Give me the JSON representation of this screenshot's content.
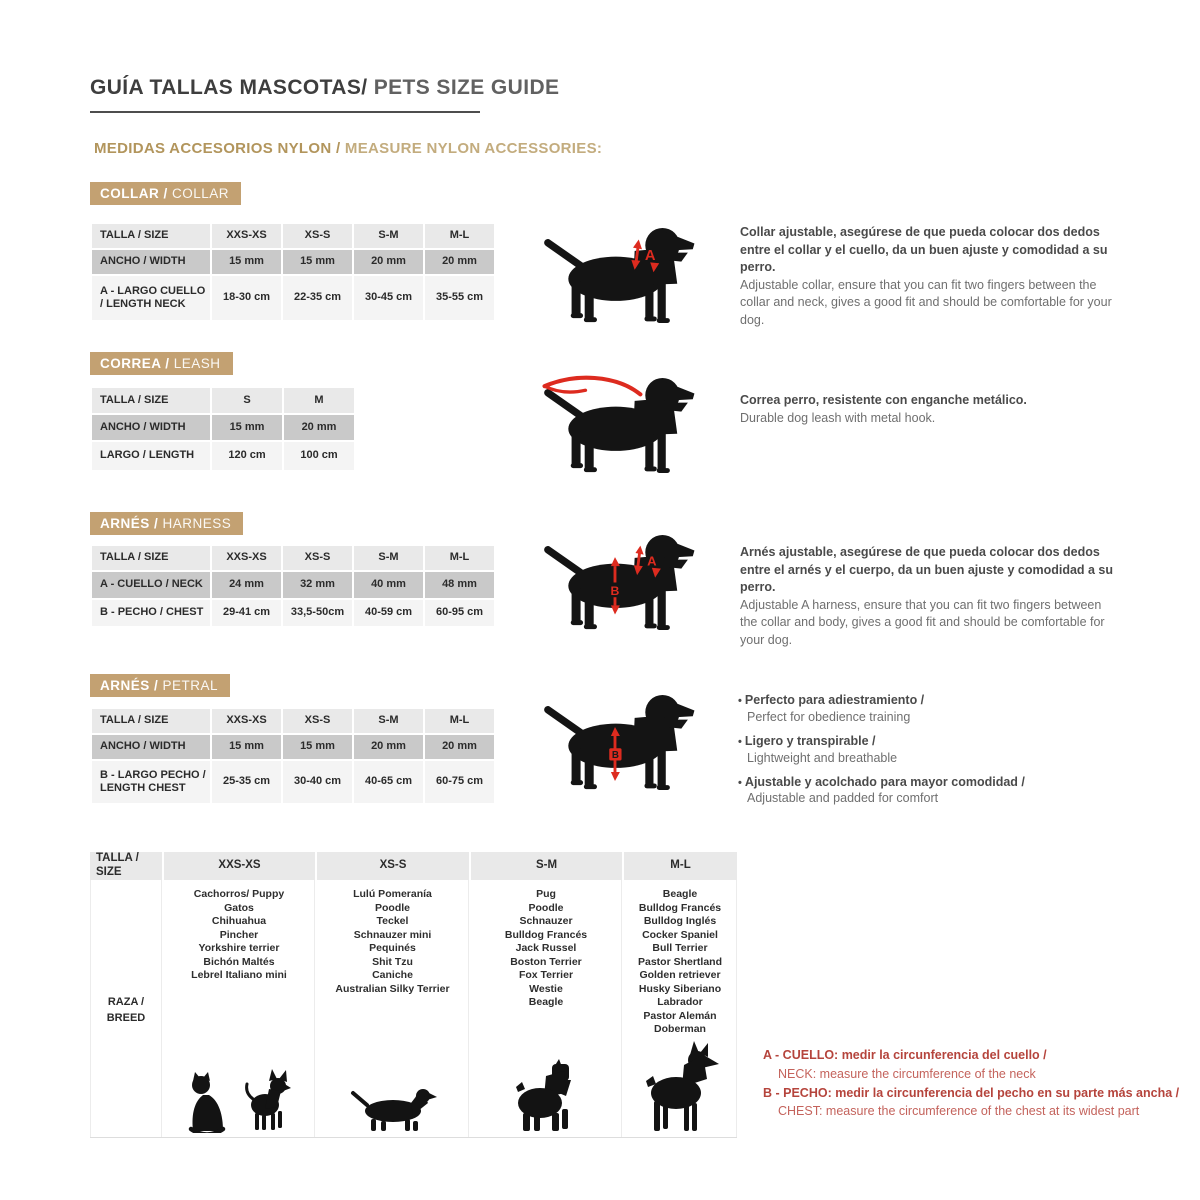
{
  "header": {
    "title_es": "GUÍA TALLAS MASCOTAS/",
    "title_en": " PETS SIZE GUIDE",
    "subtitle_es": "MEDIDAS ACCESORIOS NYLON / ",
    "subtitle_en": "MEASURE NYLON ACCESSORIES:"
  },
  "collar": {
    "badge_es": "COLLAR / ",
    "badge_en": "COLLAR",
    "table": [
      [
        "TALLA / SIZE",
        "XXS-XS",
        "XS-S",
        "S-M",
        "M-L"
      ],
      [
        "ANCHO / WIDTH",
        "15 mm",
        "15 mm",
        "20 mm",
        "20 mm"
      ],
      [
        "A - LARGO CUELLO / LENGTH NECK",
        "18-30 cm",
        "22-35 cm",
        "30-45 cm",
        "35-55 cm"
      ]
    ],
    "desc_es": "Collar ajustable, asegúrese de que pueda colocar dos dedos entre el collar y el cuello, da un buen ajuste y comodidad a su perro.",
    "desc_en": "Adjustable collar, ensure that you can fit two fingers between the collar and neck, gives a good fit and should be comfortable for your dog."
  },
  "leash": {
    "badge_es": "CORREA / ",
    "badge_en": "LEASH",
    "table": [
      [
        "TALLA / SIZE",
        "S",
        "M"
      ],
      [
        "ANCHO / WIDTH",
        "15 mm",
        "20 mm"
      ],
      [
        "LARGO / LENGTH",
        "120 cm",
        "100 cm"
      ]
    ],
    "desc_es": "Correa perro, resistente con enganche metálico.",
    "desc_en": "Durable dog leash with metal hook."
  },
  "harness": {
    "badge_es": "ARNÉS / ",
    "badge_en": "HARNESS",
    "table": [
      [
        "TALLA / SIZE",
        "XXS-XS",
        "XS-S",
        "S-M",
        "M-L"
      ],
      [
        "A - CUELLO / NECK",
        "24 mm",
        "32 mm",
        "40 mm",
        "48 mm"
      ],
      [
        "B - PECHO / CHEST",
        "29-41 cm",
        "33,5-50cm",
        "40-59 cm",
        "60-95 cm"
      ]
    ],
    "desc_es": "Arnés ajustable, asegúrese de que pueda colocar dos dedos entre el arnés y el cuerpo, da un buen ajuste y comodidad a su perro.",
    "desc_en": "Adjustable A harness, ensure that you can fit two fingers between the collar and body, gives a good fit and should be comfortable for your dog."
  },
  "petral": {
    "badge_es": "ARNÉS / ",
    "badge_en": "PETRAL",
    "table": [
      [
        "TALLA / SIZE",
        "XXS-XS",
        "XS-S",
        "S-M",
        "M-L"
      ],
      [
        "ANCHO / WIDTH",
        "15 mm",
        "15 mm",
        "20 mm",
        "20 mm"
      ],
      [
        "B - LARGO PECHO / LENGTH CHEST",
        "25-35 cm",
        "30-40 cm",
        "40-65 cm",
        "60-75 cm"
      ]
    ],
    "bullets": [
      {
        "es": "Perfecto para adiestramiento /",
        "en": "Perfect for obedience training"
      },
      {
        "es": "Ligero y transpirable /",
        "en": "Lightweight and breathable"
      },
      {
        "es": "Ajustable y acolchado para mayor comodidad /",
        "en": "Adjustable and padded for comfort"
      }
    ]
  },
  "breeds": {
    "headers": [
      "TALLA / SIZE",
      "XXS-XS",
      "XS-S",
      "S-M",
      "M-L"
    ],
    "row_label": "RAZA / BREED",
    "xxs_xs": [
      "Cachorros/ Puppy",
      "Gatos",
      "Chihuahua",
      "Pincher",
      "Yorkshire terrier",
      "Bichón Maltés",
      "Lebrel Italiano mini"
    ],
    "xs_s": [
      "Lulú Pomeranía",
      "Poodle",
      "Teckel",
      "Schnauzer mini",
      "Pequinés",
      "Shit Tzu",
      "Caniche",
      "Australian Silky Terrier"
    ],
    "s_m": [
      "Pug",
      "Poodle",
      "Schnauzer",
      "Bulldog Francés",
      "Jack Russel",
      "Boston Terrier",
      "Fox Terrier",
      "Westie",
      "Beagle"
    ],
    "m_l": [
      "Beagle",
      "Bulldog Francés",
      "Bulldog Inglés",
      "Cocker Spaniel",
      "Bull Terrier",
      "Pastor Shertland",
      "Golden retriever",
      "Husky Siberiano",
      "Labrador",
      "Pastor Alemán",
      "Doberman"
    ]
  },
  "footnote": {
    "a_es": "A - CUELLO: medir la circunferencia del cuello /",
    "a_en": "NECK: measure the circumference of the neck",
    "b_es": "B - PECHO: medir la circunferencia del pecho en su parte más ancha /",
    "b_en": "CHEST: measure the circumference of the chest at its widest part"
  },
  "markers": {
    "a": "A",
    "b": "B"
  },
  "colors": {
    "badge_bg": "#c3a172",
    "gold_text": "#b2955c",
    "marker_red": "#dd2b1f",
    "footnote_red": "#b5443c",
    "row_light": "#e9e9e9",
    "row_dark": "#c9c9c9"
  }
}
